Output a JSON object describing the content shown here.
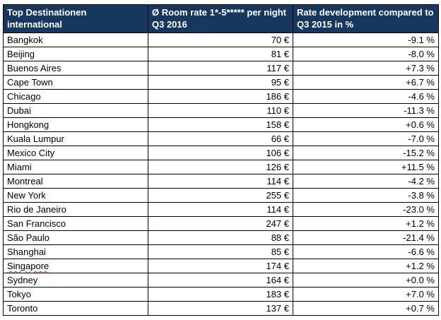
{
  "table": {
    "headers": [
      "Top Destinationen international",
      "Ø Room rate 1*-5***** per night Q3 2016",
      "Rate development compared to Q3 2015 in %"
    ],
    "rows": [
      {
        "city": "Bangkok",
        "rate": "70 €",
        "change": "-9.1 %"
      },
      {
        "city": "Beijing",
        "rate": "81 €",
        "change": "-8.0 %"
      },
      {
        "city": "Buenos Aires",
        "rate": "117 €",
        "change": "+7.3 %"
      },
      {
        "city": "Cape Town",
        "rate": "95 €",
        "change": "+6.7 %"
      },
      {
        "city": "Chicago",
        "rate": "186 €",
        "change": "-4.6 %"
      },
      {
        "city": "Dubai",
        "rate": "110 €",
        "change": "-11.3 %"
      },
      {
        "city": "Hongkong",
        "rate": "158 €",
        "change": "+0.6 %"
      },
      {
        "city": "Kuala Lumpur",
        "rate": "66 €",
        "change": "-7.0 %"
      },
      {
        "city": "Mexico City",
        "rate": "106 €",
        "change": "-15.2 %"
      },
      {
        "city": "Miami",
        "rate": "126 €",
        "change": "+11.5 %"
      },
      {
        "city": "Montreal",
        "rate": "114 €",
        "change": "-4.2 %"
      },
      {
        "city": "New York",
        "rate": "255 €",
        "change": "-3.8 %"
      },
      {
        "city": "Rio de Janeiro",
        "rate": "114 €",
        "change": "-23.0 %"
      },
      {
        "city": "San Francisco",
        "rate": "247 €",
        "change": "+1.2 %"
      },
      {
        "city": "São Paulo",
        "rate": "88 €",
        "change": "-21.4 %"
      },
      {
        "city": "Shanghai",
        "rate": "85 €",
        "change": "-6.6 %"
      },
      {
        "city": "Singapore",
        "rate": "174 €",
        "change": "+1.2 %"
      },
      {
        "city": "Sydney",
        "rate": "164 €",
        "change": "+0.0 %"
      },
      {
        "city": "Tokyo",
        "rate": "183 €",
        "change": "+7.0 %"
      },
      {
        "city": "Toronto",
        "rate": "137 €",
        "change": "+0.7 %"
      }
    ]
  },
  "colors": {
    "header_background": "#16375e",
    "header_text": "#ffffff",
    "border": "#000000",
    "spellcheck_underline": "#e02020"
  }
}
